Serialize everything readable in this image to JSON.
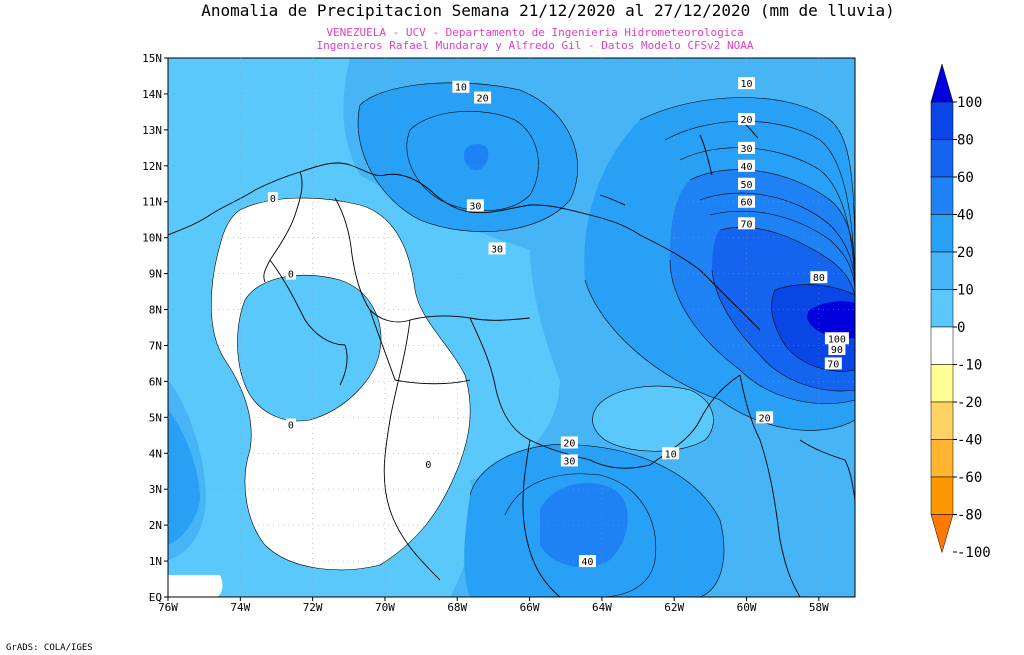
{
  "title": "Anomalia de Precipitacion Semana 21/12/2020 al 27/12/2020 (mm de lluvia)",
  "subtitle_1": "VENEZUELA - UCV - Departamento de Ingenieria Hidrometeorologica",
  "subtitle_2": "Ingenieros Rafael Mundaray y Alfredo Gil - Datos Modelo CFSv2 NOAA",
  "credit": "GrADS: COLA/IGES",
  "lat_labels": [
    "15N",
    "14N",
    "13N",
    "12N",
    "11N",
    "10N",
    "9N",
    "8N",
    "7N",
    "6N",
    "5N",
    "4N",
    "3N",
    "2N",
    "1N",
    "EQ"
  ],
  "lon_labels": [
    "76W",
    "74W",
    "72W",
    "70W",
    "68W",
    "66W",
    "64W",
    "62W",
    "60W",
    "58W"
  ],
  "colorbar": {
    "labels": [
      "100",
      "80",
      "60",
      "40",
      "20",
      "10",
      "0",
      "-10",
      "-20",
      "-40",
      "-60",
      "-80",
      "-100"
    ],
    "colors": [
      "#0000dc",
      "#0a46e6",
      "#1464f0",
      "#1e82f5",
      "#28a0f5",
      "#46b4f5",
      "#5ac8fa",
      "#ffffff",
      "#ffff96",
      "#ffd264",
      "#ffb432",
      "#ff9600",
      "#ff7800"
    ]
  },
  "contour_labels": [
    {
      "text": "10",
      "lon": -67.9,
      "lat": 14.2
    },
    {
      "text": "20",
      "lon": -67.3,
      "lat": 13.9
    },
    {
      "text": "30",
      "lon": -67.5,
      "lat": 10.9
    },
    {
      "text": "30",
      "lon": -66.9,
      "lat": 9.7
    },
    {
      "text": "0",
      "lon": -73.1,
      "lat": 11.1
    },
    {
      "text": "0",
      "lon": -72.6,
      "lat": 9.0
    },
    {
      "text": "0",
      "lon": -72.6,
      "lat": 4.8
    },
    {
      "text": "0",
      "lon": -68.8,
      "lat": 3.7
    },
    {
      "text": "10",
      "lon": -60.0,
      "lat": 14.3
    },
    {
      "text": "20",
      "lon": -60.0,
      "lat": 13.3
    },
    {
      "text": "30",
      "lon": -60.0,
      "lat": 12.5
    },
    {
      "text": "40",
      "lon": -60.0,
      "lat": 12.0
    },
    {
      "text": "50",
      "lon": -60.0,
      "lat": 11.5
    },
    {
      "text": "60",
      "lon": -60.0,
      "lat": 11.0
    },
    {
      "text": "70",
      "lon": -60.0,
      "lat": 10.4
    },
    {
      "text": "80",
      "lon": -58.0,
      "lat": 8.9
    },
    {
      "text": "100",
      "lon": -57.5,
      "lat": 7.2
    },
    {
      "text": "90",
      "lon": -57.5,
      "lat": 6.9
    },
    {
      "text": "70",
      "lon": -57.6,
      "lat": 6.5
    },
    {
      "text": "20",
      "lon": -59.5,
      "lat": 5.0
    },
    {
      "text": "20",
      "lon": -64.9,
      "lat": 4.3
    },
    {
      "text": "30",
      "lon": -64.9,
      "lat": 3.8
    },
    {
      "text": "10",
      "lon": -62.1,
      "lat": 4.0
    },
    {
      "text": "40",
      "lon": -64.4,
      "lat": 1.0
    }
  ]
}
